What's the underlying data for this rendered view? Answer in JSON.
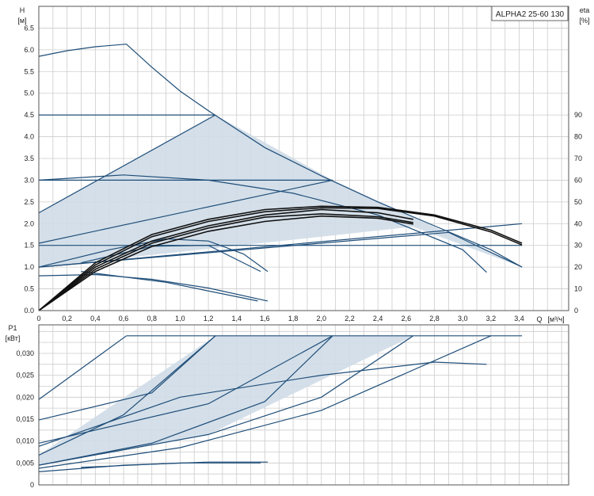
{
  "chart_data": [
    {
      "type": "line",
      "title": "ALPHA2 25-60 130",
      "ylabel": "H",
      "yunit": "[м]",
      "y2label": "eta",
      "y2unit": "[%]",
      "xlabel": "Q",
      "xunit": "[м³/ч]",
      "xlim": [
        0,
        3.75
      ],
      "ylim": [
        0,
        7.0
      ],
      "y2lim": [
        0,
        140
      ],
      "x_ticks": [
        "0",
        "0,2",
        "0,4",
        "0,6",
        "0,8",
        "1,0",
        "1,2",
        "1,4",
        "1,6",
        "1,8",
        "2,0",
        "2,2",
        "2,4",
        "2,6",
        "2,8",
        "3,0",
        "3,2",
        "3,4"
      ],
      "y_ticks": [
        "0.0",
        "0.5",
        "1.0",
        "1.5",
        "2.0",
        "2.5",
        "3.0",
        "3.5",
        "4.0",
        "4.5",
        "5.0",
        "5.5",
        "6.0",
        "6.5"
      ],
      "y2_ticks": [
        "0",
        "10",
        "20",
        "30",
        "40",
        "50",
        "60",
        "70",
        "80",
        "90"
      ],
      "grid": true,
      "shaded_region": [
        [
          0,
          1.0
        ],
        [
          0,
          2.25
        ],
        [
          1.25,
          4.5
        ],
        [
          2.08,
          3.0
        ],
        [
          3.42,
          1.0
        ],
        [
          2.65,
          1.93
        ],
        [
          0,
          1.0
        ]
      ],
      "series": [
        {
          "role": "curve",
          "points": [
            [
              0,
              5.85
            ],
            [
              0.2,
              5.98
            ],
            [
              0.4,
              6.07
            ],
            [
              0.62,
              6.13
            ],
            [
              0.8,
              5.6
            ],
            [
              1.0,
              5.05
            ],
            [
              1.2,
              4.6
            ],
            [
              1.6,
              3.75
            ],
            [
              2.0,
              3.1
            ],
            [
              2.4,
              2.5
            ],
            [
              2.8,
              1.95
            ],
            [
              3.2,
              1.4
            ],
            [
              3.42,
              1.0
            ]
          ]
        },
        {
          "role": "curve",
          "points": [
            [
              0,
              4.5
            ],
            [
              1.25,
              4.5
            ]
          ]
        },
        {
          "role": "curve",
          "points": [
            [
              0,
              3.0
            ],
            [
              2.08,
              3.0
            ]
          ]
        },
        {
          "role": "curve",
          "points": [
            [
              0,
              1.5
            ],
            [
              3.42,
              1.5
            ]
          ]
        },
        {
          "role": "curve",
          "points": [
            [
              0,
              2.25
            ],
            [
              1.25,
              4.5
            ]
          ]
        },
        {
          "role": "curve",
          "points": [
            [
              0,
              1.55
            ],
            [
              2.08,
              3.0
            ]
          ]
        },
        {
          "role": "curve",
          "points": [
            [
              0,
              1.0
            ],
            [
              3.42,
              2.0
            ]
          ]
        },
        {
          "role": "curve",
          "points": [
            [
              0,
              1.0
            ],
            [
              2.9,
              1.8
            ],
            [
              3.42,
              1.0
            ]
          ]
        },
        {
          "role": "curve",
          "points": [
            [
              0,
              3.0
            ],
            [
              0.6,
              3.12
            ],
            [
              1.2,
              3.0
            ],
            [
              1.8,
              2.7
            ],
            [
              2.4,
              2.2
            ],
            [
              3.0,
              1.4
            ],
            [
              3.17,
              0.88
            ]
          ]
        },
        {
          "role": "curve",
          "points": [
            [
              0,
              0.8
            ],
            [
              0.4,
              0.83
            ],
            [
              0.8,
              0.72
            ],
            [
              1.2,
              0.52
            ],
            [
              1.62,
              0.22
            ]
          ]
        },
        {
          "role": "curve",
          "points": [
            [
              0.3,
              0.9
            ],
            [
              0.9,
              0.65
            ],
            [
              1.55,
              0.22
            ]
          ]
        },
        {
          "role": "curve",
          "points": [
            [
              0,
              1.0
            ],
            [
              0.5,
              1.4
            ],
            [
              0.9,
              1.65
            ],
            [
              1.2,
              1.6
            ],
            [
              1.45,
              1.3
            ],
            [
              1.62,
              0.9
            ]
          ]
        },
        {
          "role": "curve",
          "points": [
            [
              0.3,
              1.1
            ],
            [
              0.8,
              1.48
            ],
            [
              1.2,
              1.5
            ],
            [
              1.57,
              0.9
            ]
          ]
        },
        {
          "role": "eta",
          "values_y2": true,
          "points": [
            [
              0,
              0
            ],
            [
              0.4,
              22
            ],
            [
              0.8,
              35
            ],
            [
              1.2,
              42
            ],
            [
              1.6,
              46.5
            ],
            [
              2.0,
              48
            ],
            [
              2.4,
              47.5
            ],
            [
              2.8,
              44
            ],
            [
              3.2,
              37
            ],
            [
              3.42,
              31
            ]
          ]
        },
        {
          "role": "eta",
          "values_y2": true,
          "points": [
            [
              0,
              0
            ],
            [
              0.4,
              21
            ],
            [
              0.8,
              34
            ],
            [
              1.2,
              41
            ],
            [
              1.6,
              45.5
            ],
            [
              2.0,
              47.3
            ],
            [
              2.4,
              47
            ],
            [
              2.8,
              43.5
            ],
            [
              3.2,
              36.2
            ],
            [
              3.42,
              30.2
            ]
          ]
        },
        {
          "role": "eta",
          "values_y2": true,
          "points": [
            [
              0,
              0
            ],
            [
              0.4,
              20
            ],
            [
              0.8,
              32
            ],
            [
              1.2,
              39
            ],
            [
              1.6,
              44
            ],
            [
              2.0,
              46.5
            ],
            [
              2.4,
              45
            ],
            [
              2.65,
              42
            ]
          ]
        },
        {
          "role": "eta",
          "values_y2": true,
          "points": [
            [
              0,
              0
            ],
            [
              0.4,
              19
            ],
            [
              0.8,
              31
            ],
            [
              1.2,
              38
            ],
            [
              1.6,
              43
            ],
            [
              2.0,
              44.5
            ],
            [
              2.4,
              43.2
            ],
            [
              2.65,
              40.5
            ]
          ]
        },
        {
          "role": "eta",
          "values_y2": true,
          "points": [
            [
              0,
              0
            ],
            [
              0.4,
              18
            ],
            [
              0.8,
              29.5
            ],
            [
              1.2,
              36.5
            ],
            [
              1.6,
              41
            ],
            [
              2.0,
              43.5
            ],
            [
              2.4,
              42.5
            ],
            [
              2.65,
              39.8
            ]
          ]
        }
      ]
    },
    {
      "type": "line",
      "ylabel": "P1",
      "yunit": "[кВт]",
      "xlim": [
        0,
        3.75
      ],
      "ylim": [
        0,
        0.0365
      ],
      "y_ticks": [
        "0",
        "0,005",
        "0,010",
        "0,015",
        "0,020",
        "0,025",
        "0,030"
      ],
      "grid": true,
      "shaded_region": [
        [
          0,
          0.0045
        ],
        [
          0,
          0.0068
        ],
        [
          1.25,
          0.034
        ],
        [
          2.65,
          0.034
        ],
        [
          1.2,
          0.0115
        ],
        [
          0,
          0.0045
        ]
      ],
      "series": [
        {
          "role": "curve",
          "points": [
            [
              0.62,
              0.034
            ],
            [
              3.42,
              0.034
            ]
          ]
        },
        {
          "role": "curve",
          "points": [
            [
              0,
              0.0195
            ],
            [
              0.62,
              0.034
            ]
          ]
        },
        {
          "role": "curve",
          "points": [
            [
              0,
              0.0068
            ],
            [
              0.6,
              0.016
            ],
            [
              1.25,
              0.034
            ]
          ]
        },
        {
          "role": "curve",
          "points": [
            [
              0,
              0.0045
            ],
            [
              0.8,
              0.0095
            ],
            [
              1.6,
              0.019
            ],
            [
              2.08,
              0.034
            ]
          ]
        },
        {
          "role": "curve",
          "points": [
            [
              0,
              0.0045
            ],
            [
              1.2,
              0.0115
            ],
            [
              2.0,
              0.02
            ],
            [
              2.65,
              0.034
            ]
          ]
        },
        {
          "role": "curve",
          "points": [
            [
              0,
              0.0095
            ],
            [
              1.2,
              0.0185
            ],
            [
              2.08,
              0.034
            ]
          ]
        },
        {
          "role": "curve",
          "points": [
            [
              0,
              0.0148
            ],
            [
              0.8,
              0.021
            ],
            [
              1.25,
              0.034
            ]
          ]
        },
        {
          "role": "curve",
          "points": [
            [
              0,
              0.0088
            ],
            [
              1.0,
              0.02
            ],
            [
              2.0,
              0.025
            ],
            [
              2.8,
              0.028
            ],
            [
              3.17,
              0.0275
            ]
          ]
        },
        {
          "role": "curve",
          "points": [
            [
              0,
              0.0038
            ],
            [
              1.0,
              0.0085
            ],
            [
              2.0,
              0.017
            ],
            [
              3.2,
              0.034
            ]
          ]
        },
        {
          "role": "curve",
          "points": [
            [
              0,
              0.003
            ],
            [
              0.6,
              0.0045
            ],
            [
              1.2,
              0.0052
            ],
            [
              1.62,
              0.0052
            ]
          ]
        },
        {
          "role": "curve",
          "points": [
            [
              0.3,
              0.004
            ],
            [
              1.0,
              0.005
            ],
            [
              1.57,
              0.005
            ]
          ]
        }
      ]
    }
  ]
}
